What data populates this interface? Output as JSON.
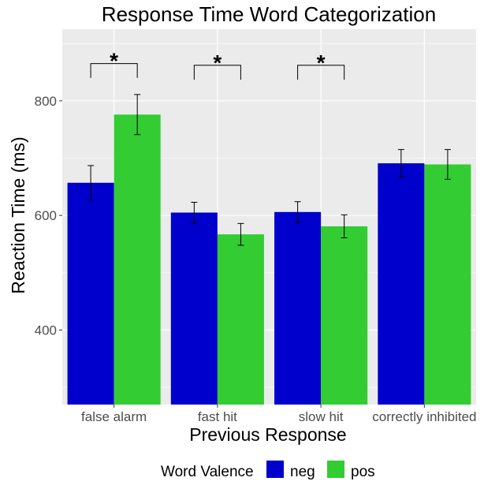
{
  "chart_data": {
    "type": "bar",
    "title": "Response Time Word Categorization",
    "xlabel": "Previous Response",
    "ylabel": "Reaction Time (ms)",
    "ylim": [
      270,
      925
    ],
    "yticks": [
      400,
      600,
      800
    ],
    "grid": true,
    "categories": [
      "false alarm",
      "fast hit",
      "slow hit",
      "correctly inhibited"
    ],
    "series": [
      {
        "name": "neg",
        "color": "#0000CC",
        "values": [
          657,
          605,
          606,
          691
        ],
        "error": [
          30,
          18,
          18,
          24
        ]
      },
      {
        "name": "pos",
        "color": "#33CC33",
        "values": [
          776,
          567,
          581,
          689
        ],
        "error": [
          35,
          19,
          20,
          26
        ]
      }
    ],
    "legend": {
      "title": "Word Valence",
      "position": "bottom"
    },
    "annotations": [
      {
        "category": "false alarm",
        "label": "*",
        "value": 840
      },
      {
        "category": "fast hit",
        "label": "*",
        "value": 837
      },
      {
        "category": "slow hit",
        "label": "*",
        "value": 837
      }
    ]
  }
}
